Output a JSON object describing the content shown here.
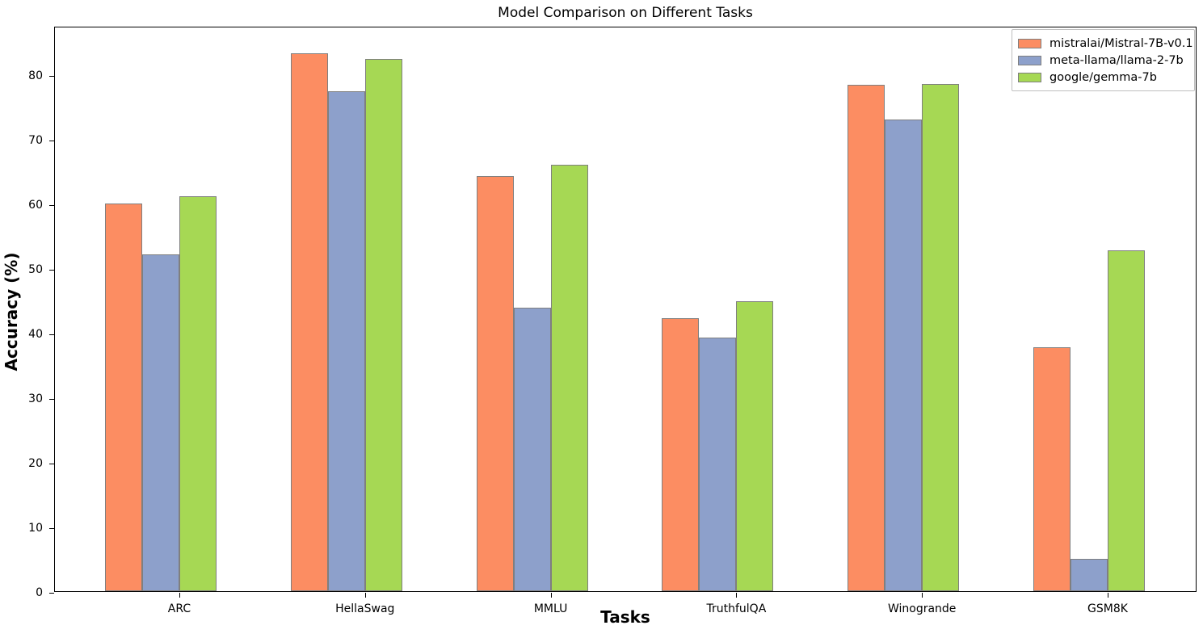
{
  "title": "Model Comparison on Different Tasks",
  "x_axis_label": "Tasks",
  "y_axis_label": "Accuracy (%)",
  "chart_data": {
    "type": "bar",
    "title": "Model Comparison on Different Tasks",
    "xlabel": "Tasks",
    "ylabel": "Accuracy (%)",
    "categories": [
      "ARC",
      "HellaSwag",
      "MMLU",
      "TruthfulQA",
      "Winogrande",
      "GSM8K"
    ],
    "series": [
      {
        "name": "mistralai/Mistral-7B-v0.1",
        "color": "#FC8D62",
        "values": [
          60.0,
          83.3,
          64.2,
          42.2,
          78.4,
          37.8
        ]
      },
      {
        "name": "meta-llama/llama-2-7b",
        "color": "#8DA0CB",
        "values": [
          52.1,
          77.4,
          43.9,
          39.3,
          73.0,
          5.0
        ]
      },
      {
        "name": "google/gemma-7b",
        "color": "#A6D854",
        "values": [
          61.1,
          82.4,
          66.0,
          44.9,
          78.5,
          52.8
        ]
      }
    ],
    "ylim": [
      0,
      87.5
    ],
    "yticks": [
      0,
      10,
      20,
      30,
      40,
      50,
      60,
      70,
      80
    ],
    "bar_edge_color": "#7F7F7F",
    "axis_color": "#000000",
    "background_color": "#FFFFFF",
    "grid": false,
    "legend_position": "upper right"
  }
}
